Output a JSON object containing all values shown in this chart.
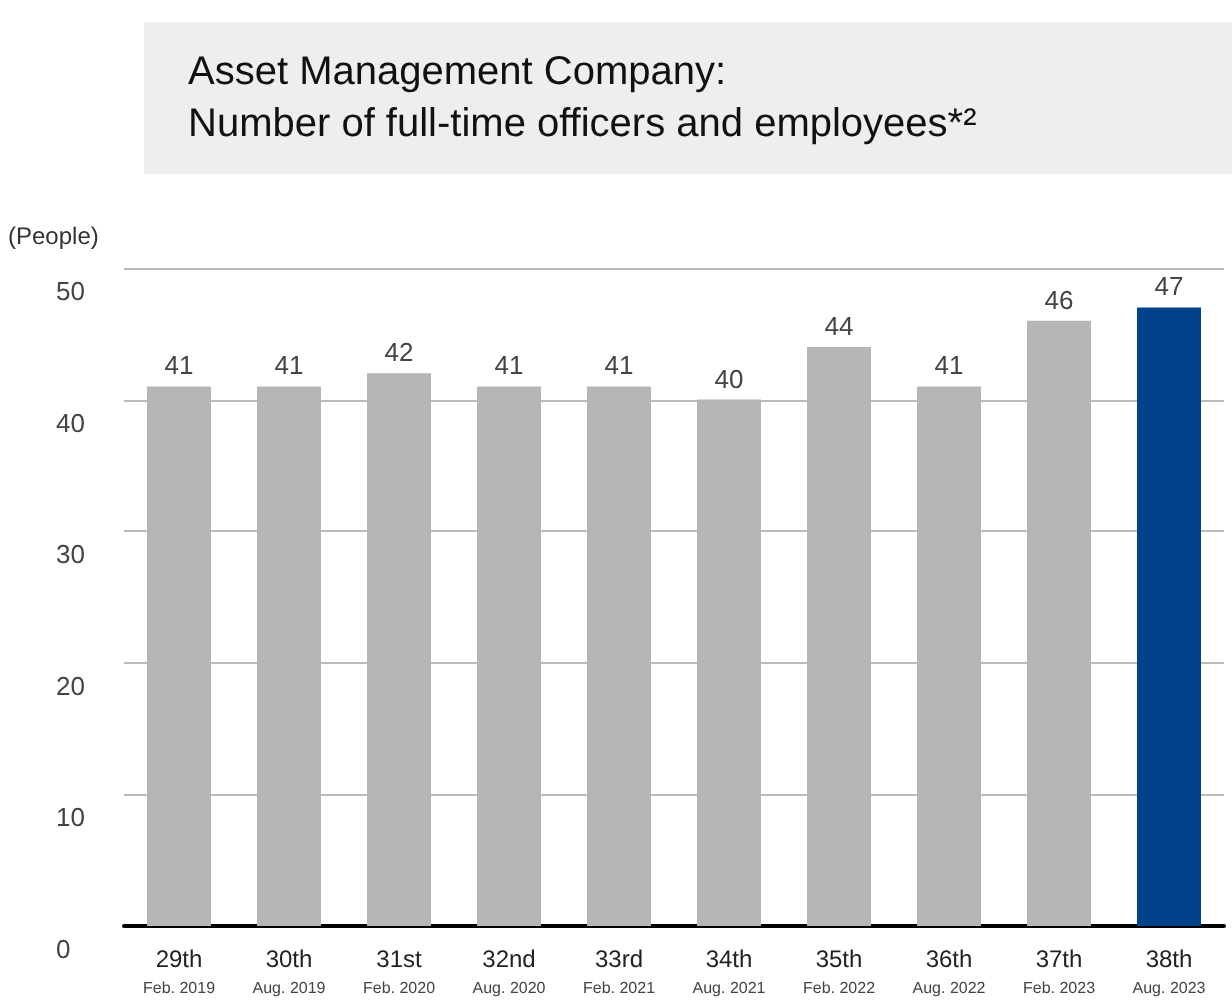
{
  "chart_data": {
    "type": "bar",
    "title": "Asset Management Company:\nNumber of full-time officers and employees*²",
    "ylabel": "(People)",
    "categories": [
      "29th\nFeb. 2019",
      "30th\nAug. 2019",
      "31st\nFeb. 2020",
      "32nd\nAug. 2020",
      "33rd\nFeb. 2021",
      "34th\nAug. 2021",
      "35th\nFeb. 2022",
      "36th\nAug. 2022",
      "37th\nFeb. 2023",
      "38th\nAug. 2023"
    ],
    "values": [
      41,
      41,
      42,
      41,
      41,
      40,
      44,
      41,
      46,
      47
    ],
    "colors": [
      "#b5b6b6",
      "#b5b6b6",
      "#b5b6b6",
      "#b5b6b6",
      "#b5b6b6",
      "#b5b6b6",
      "#b5b6b6",
      "#b5b6b6",
      "#b5b6b6",
      "#00438c"
    ],
    "ylim": [
      0,
      50
    ],
    "yticks": [
      0,
      10,
      20,
      30,
      40,
      50
    ],
    "grid": "y",
    "data_labels": true
  }
}
